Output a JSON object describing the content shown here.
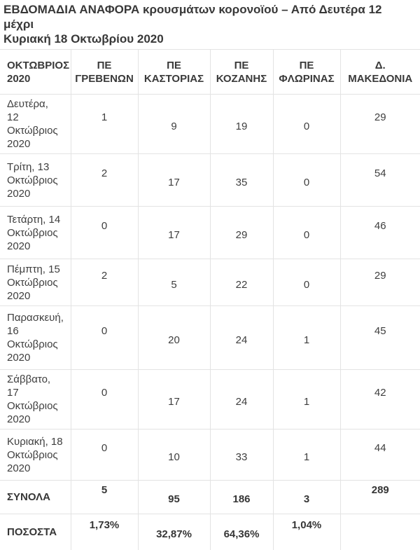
{
  "header": {
    "title_display": "ΕΒΔΟΜΑΔΙΑ ΑΝΑΦΟΡΑ κρουσμάτων κορονοϊού – Από Δευτέρα 12 μέχρι\nΚυριακή 18 Οκτωβρίου 2020"
  },
  "chart_data": {
    "type": "table",
    "title": "ΕΒΔΟΜΑΔΙΑ ΑΝΑΦΟΡΑ κρουσμάτων κορονοϊού – Από Δευτέρα 12 μέχρι Κυριακή 18 Οκτωβρίου 2020",
    "columns": [
      "ΟΚΤΩΒΡΙΟΣ 2020",
      "ΠΕ ΓΡΕΒΕΝΩΝ",
      "ΠΕ ΚΑΣΤΟΡΙΑΣ",
      "ΠΕ ΚΟΖΑΝΗΣ",
      "ΠΕ ΦΛΩΡΙΝΑΣ",
      "Δ. ΜΑΚΕΔΟΝΙΑ"
    ],
    "rows": [
      {
        "date": "Δευτέρα, 12 Οκτώβριος 2020",
        "date_display": "Δευτέρα,\n12\nΟκτώβριος\n2020",
        "values": [
          1,
          9,
          19,
          0,
          29
        ]
      },
      {
        "date": "Τρίτη, 13 Οκτώβριος 2020",
        "date_display": "Τρίτη, 13\nΟκτώβριος\n2020",
        "values": [
          2,
          17,
          35,
          0,
          54
        ]
      },
      {
        "date": "Τετάρτη, 14 Οκτώβριος 2020",
        "date_display": "Τετάρτη, 14\nΟκτώβριος\n2020",
        "values": [
          0,
          17,
          29,
          0,
          46
        ]
      },
      {
        "date": "Πέμπτη, 15 Οκτώβριος 2020",
        "date_display": "Πέμπτη, 15\nΟκτώβριος\n2020",
        "values": [
          2,
          5,
          22,
          0,
          29
        ]
      },
      {
        "date": "Παρασκευή, 16 Οκτώβριος 2020",
        "date_display": "Παρασκευή,\n16\nΟκτώβριος\n2020",
        "values": [
          0,
          20,
          24,
          1,
          45
        ]
      },
      {
        "date": "Σάββατο, 17 Οκτώβριος 2020",
        "date_display": "Σάββατο,\n17\nΟκτώβριος\n2020",
        "values": [
          0,
          17,
          24,
          1,
          42
        ]
      },
      {
        "date": "Κυριακή, 18 Οκτώβριος 2020",
        "date_display": "Κυριακή, 18\nΟκτώβριος\n2020",
        "values": [
          0,
          10,
          33,
          1,
          44
        ]
      }
    ],
    "totals_row": {
      "label": "ΣΥΝΟΛΑ",
      "values": [
        5,
        95,
        186,
        3,
        289
      ]
    },
    "percent_row": {
      "label": "ΠΟΣΟΣΤΑ",
      "values": [
        "1,73%",
        "32,87%",
        "64,36%",
        "1,04%",
        ""
      ]
    },
    "layout_hints": {
      "grid": true,
      "legend": "none"
    }
  },
  "colors": {
    "text": "#3e3e3e",
    "bold_text": "#363636",
    "border": "#e3e3e3",
    "background": "#ffffff"
  }
}
